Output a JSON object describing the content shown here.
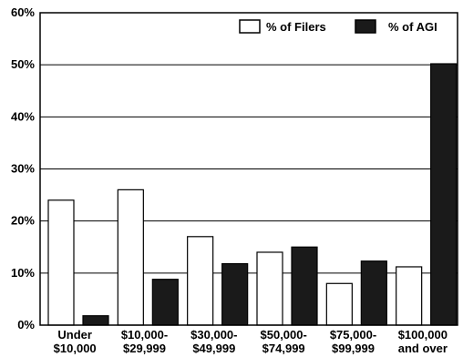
{
  "chart_data": {
    "type": "bar",
    "title": "",
    "xlabel": "",
    "ylabel": "",
    "ylim": [
      0,
      60
    ],
    "yticks": [
      "0%",
      "10%",
      "20%",
      "30%",
      "40%",
      "50%",
      "60%"
    ],
    "grid": true,
    "legend_position": "top-right",
    "categories": [
      [
        "Under",
        "$10,000"
      ],
      [
        "$10,000-",
        "$29,999"
      ],
      [
        "$30,000-",
        "$49,999"
      ],
      [
        "$50,000-",
        "$74,999"
      ],
      [
        "$75,000-",
        "$99,999"
      ],
      [
        "$100,000",
        "and over"
      ]
    ],
    "series": [
      {
        "name": "% of Filers",
        "fill": "#ffffff",
        "values": [
          24,
          26,
          17,
          14,
          8,
          11.2
        ]
      },
      {
        "name": "% of AGI",
        "fill": "#1a1a1a",
        "values": [
          1.8,
          8.8,
          11.8,
          15,
          12.3,
          50.2
        ]
      }
    ]
  }
}
